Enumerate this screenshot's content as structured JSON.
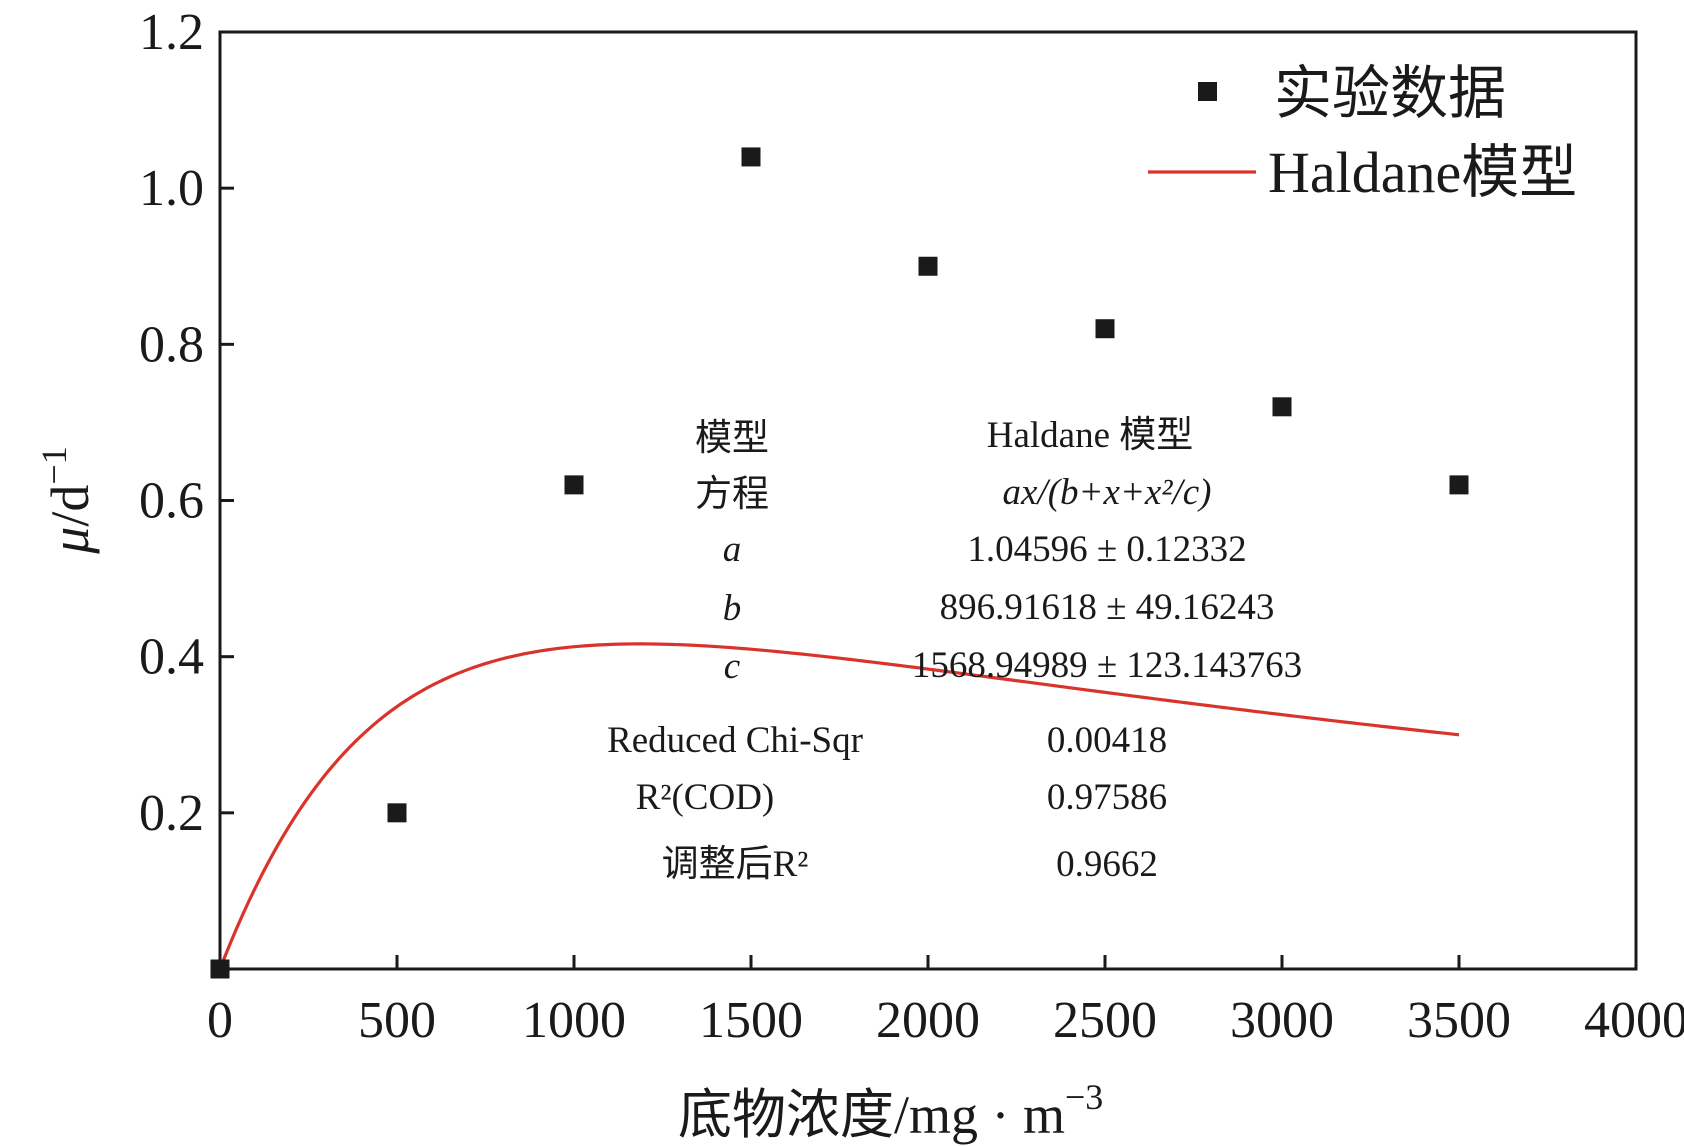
{
  "chart_data": {
    "type": "scatter",
    "xlabel": "底物浓度/mg · m",
    "xlabel_sup": "−3",
    "ylabel_mu": "μ",
    "ylabel_rest": "/d",
    "ylabel_sup": "−1",
    "xlim": [
      0,
      4000
    ],
    "ylim": [
      0,
      1.2
    ],
    "x_ticks": [
      0,
      500,
      1000,
      1500,
      2000,
      2500,
      3000,
      3500,
      4000
    ],
    "x_tick_labels": [
      "0",
      "500",
      "1000",
      "1500",
      "2000",
      "2500",
      "3000",
      "3500",
      "4000"
    ],
    "y_ticks": [
      0.2,
      0.4,
      0.6,
      0.8,
      1.0,
      1.2
    ],
    "y_tick_labels": [
      "0.2",
      "0.4",
      "0.6",
      "0.8",
      "1.0",
      "1.2"
    ],
    "grid": false,
    "legend_position": "top-right",
    "series": [
      {
        "name": "实验数据",
        "kind": "scatter",
        "marker": "square",
        "color": "#1a1a1a",
        "x": [
          0,
          500,
          1000,
          1500,
          2000,
          2500,
          3000,
          3500
        ],
        "y": [
          0.0,
          0.2,
          0.62,
          1.04,
          0.9,
          0.82,
          0.72,
          0.62
        ]
      },
      {
        "name": "Haldane模型",
        "kind": "line",
        "color": "#d9342b",
        "x_range": [
          0,
          3500
        ],
        "params": {
          "a": 1.04596,
          "b": 896.91618,
          "c": 1568.94989
        }
      }
    ],
    "fit_table": {
      "rows": [
        {
          "label": "模型",
          "value": "Haldane 模型"
        },
        {
          "label": "方程",
          "value": "ax/(b+x+x²/c)"
        },
        {
          "label": "a",
          "value": "1.04596 ± 0.12332"
        },
        {
          "label": "b",
          "value": "896.91618 ± 49.16243"
        },
        {
          "label": "c",
          "value": "1568.94989 ± 123.143763"
        },
        {
          "label": "Reduced Chi-Sqr",
          "value": "0.00418"
        },
        {
          "label": "R²(COD)",
          "value": "0.97586"
        },
        {
          "label": "调整后R²",
          "value": "0.9662"
        }
      ]
    }
  }
}
